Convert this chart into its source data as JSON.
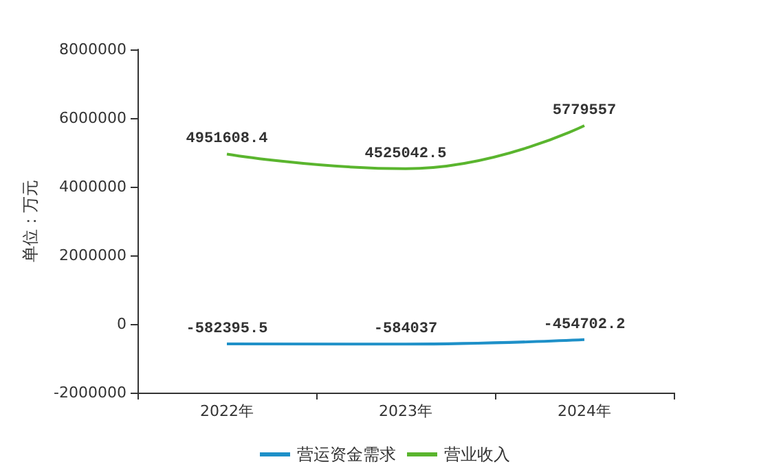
{
  "chart_data": {
    "type": "line",
    "ylabel": "单位：万元",
    "categories": [
      "2022年",
      "2023年",
      "2024年"
    ],
    "series": [
      {
        "name": "营运资金需求",
        "color": "#1e90c8",
        "values": [
          -582395.5,
          -584037,
          -454702.2
        ]
      },
      {
        "name": "营业收入",
        "color": "#5ab52e",
        "values": [
          4951608.4,
          4525042.5,
          5779557
        ]
      }
    ],
    "ylim": [
      -2000000,
      8000000
    ],
    "yticks": [
      -2000000,
      0,
      2000000,
      4000000,
      6000000,
      8000000
    ],
    "grid": false,
    "legend": "bottom",
    "marker": "none",
    "line_style": "solid",
    "data_labels": true
  }
}
